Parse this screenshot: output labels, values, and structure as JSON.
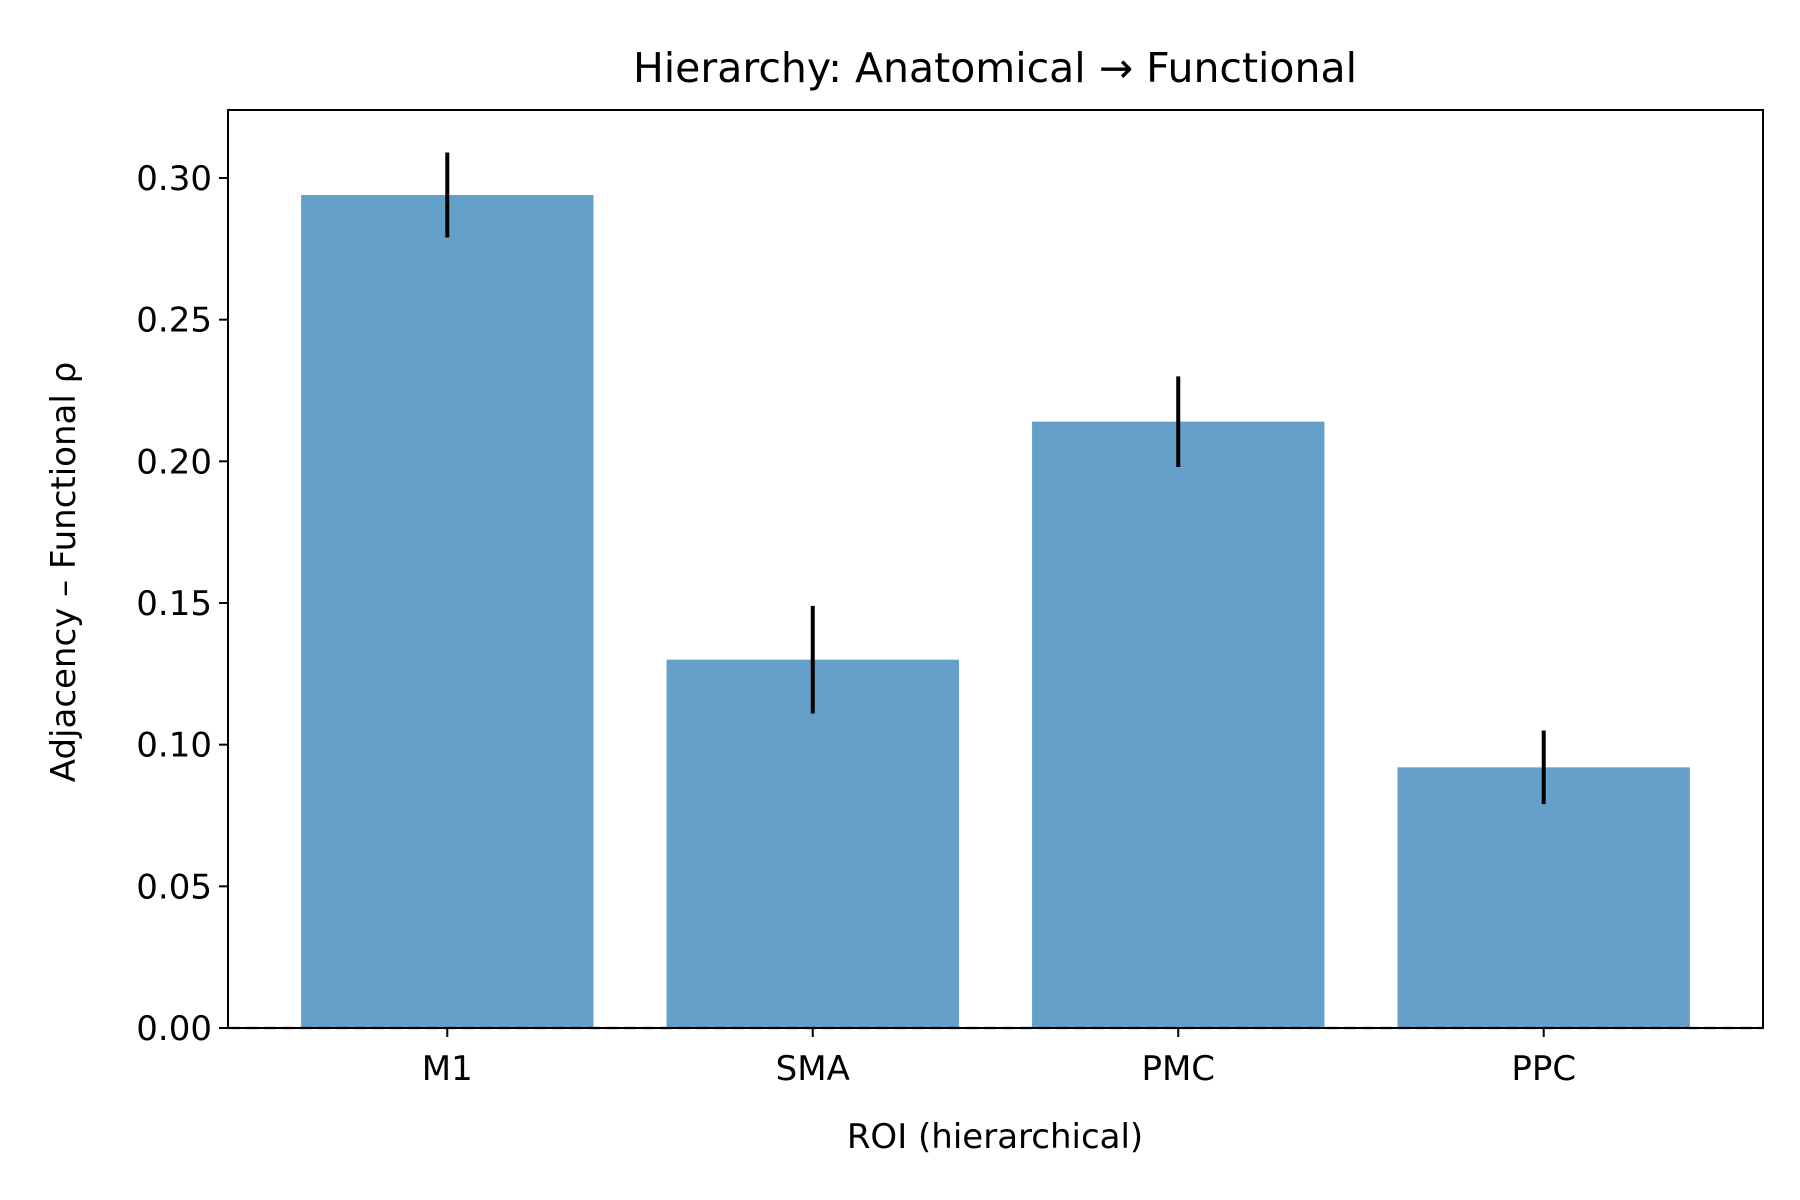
{
  "chart_data": {
    "type": "bar",
    "title": "Hierarchy: Anatomical → Functional",
    "xlabel": "ROI (hierarchical)",
    "ylabel": "Adjacency – Functional ρ",
    "categories": [
      "M1",
      "SMA",
      "PMC",
      "PPC"
    ],
    "values": [
      0.294,
      0.13,
      0.214,
      0.092
    ],
    "errors": [
      0.015,
      0.019,
      0.016,
      0.013
    ],
    "ylim": [
      0,
      0.324
    ],
    "yticks": [
      0.0,
      0.05,
      0.1,
      0.15,
      0.2,
      0.25,
      0.3
    ],
    "ytick_labels": [
      "0.00",
      "0.05",
      "0.10",
      "0.15",
      "0.20",
      "0.25",
      "0.30"
    ],
    "reference_line": {
      "y": 0,
      "style": "dashed",
      "color": "#000000"
    },
    "grid": false,
    "legend": "none",
    "bar_color": "#65a0cb",
    "errorbar_color": "#000000"
  }
}
